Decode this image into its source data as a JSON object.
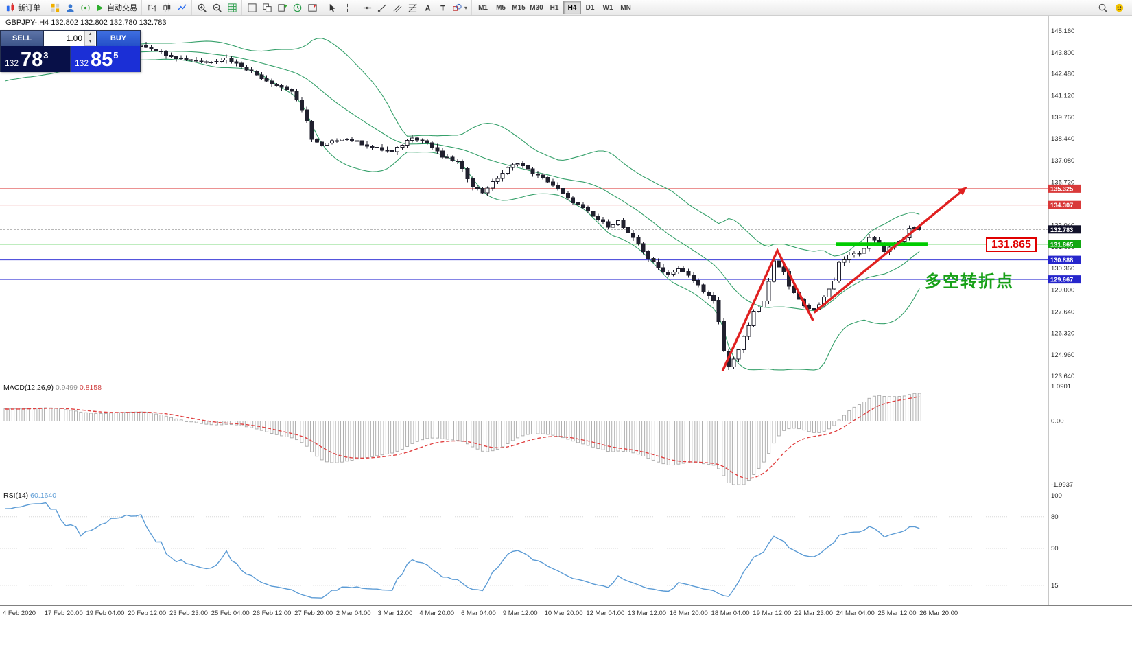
{
  "symbol_header": "GBPJPY-,H4 132.802 132.802 132.780 132.783",
  "annotation_text": "多空转折点",
  "price_tag": "131.865",
  "trade_widget": {
    "sell_label": "SELL",
    "buy_label": "BUY",
    "volume": "1.00",
    "sell_price": {
      "small": "132",
      "big": "78",
      "sup": "3"
    },
    "buy_price": {
      "small": "132",
      "big": "85",
      "sup": "5"
    }
  },
  "toolbar": {
    "groups": [
      {
        "items": [
          {
            "name": "new-order-button",
            "icon": "new-order",
            "label": "新订单"
          }
        ]
      },
      {
        "items": [
          {
            "name": "charts-grid-button",
            "icon": "charts-grid"
          },
          {
            "name": "market-watch-button",
            "icon": "profile"
          },
          {
            "name": "data-window-button",
            "icon": "signal"
          },
          {
            "name": "autotrading-button",
            "icon": "play",
            "label": "自动交易"
          }
        ]
      },
      {
        "items": [
          {
            "name": "bar-chart-button",
            "icon": "bar-chart"
          },
          {
            "name": "candlestick-button",
            "icon": "candlestick"
          },
          {
            "name": "line-chart-button",
            "icon": "line-chart"
          }
        ]
      },
      {
        "items": [
          {
            "name": "zoom-in-button",
            "icon": "zoom-in"
          },
          {
            "name": "zoom-out-button",
            "icon": "zoom-out"
          },
          {
            "name": "grid-button",
            "icon": "grid"
          }
        ]
      },
      {
        "items": [
          {
            "name": "tile-windows-button",
            "icon": "tile"
          },
          {
            "name": "cascade-windows-button",
            "icon": "cascade"
          },
          {
            "name": "new-chart-button",
            "icon": "new-chart"
          },
          {
            "name": "auto-scroll-button",
            "icon": "clock"
          },
          {
            "name": "chart-shift-button",
            "icon": "shift"
          }
        ]
      },
      {
        "items": [
          {
            "name": "cursor-button",
            "icon": "cursor"
          },
          {
            "name": "crosshair-button",
            "icon": "crosshair"
          }
        ]
      },
      {
        "items": [
          {
            "name": "horizontal-line-button",
            "icon": "hline"
          },
          {
            "name": "trendline-button",
            "icon": "trendline"
          },
          {
            "name": "channel-button",
            "icon": "channel"
          },
          {
            "name": "fibonacci-button",
            "icon": "fibo"
          },
          {
            "name": "text-button",
            "icon": "text-a"
          },
          {
            "name": "label-button",
            "icon": "text-t"
          },
          {
            "name": "shapes-button",
            "icon": "shapes",
            "caret": true
          }
        ]
      }
    ],
    "timeframes": [
      {
        "label": "M1"
      },
      {
        "label": "M5"
      },
      {
        "label": "M15"
      },
      {
        "label": "M30"
      },
      {
        "label": "H1"
      },
      {
        "label": "H4",
        "active": true
      },
      {
        "label": "D1"
      },
      {
        "label": "W1"
      },
      {
        "label": "MN"
      }
    ],
    "right_items": [
      {
        "name": "search-button",
        "icon": "search"
      },
      {
        "name": "community-button",
        "icon": "community"
      }
    ]
  },
  "price_axis": {
    "max": 145.16,
    "min": 123.64,
    "labels": [
      "145.160",
      "143.800",
      "142.480",
      "141.120",
      "139.760",
      "138.440",
      "137.080",
      "135.720",
      "134.360",
      "133.040",
      "131.680",
      "130.360",
      "129.000",
      "127.640",
      "126.320",
      "124.960",
      "123.640"
    ]
  },
  "hlines": [
    {
      "price": 135.325,
      "type": "red"
    },
    {
      "price": 134.307,
      "type": "red"
    },
    {
      "price": 132.783,
      "type": "current"
    },
    {
      "price": 131.865,
      "type": "green"
    },
    {
      "price": 130.888,
      "type": "blue"
    },
    {
      "price": 129.667,
      "type": "blue"
    }
  ],
  "support_segment": {
    "price": 131.865,
    "i1": 165.3,
    "i2": 183.6
  },
  "arrows": {
    "zigzag": [
      [
        142.8,
        123.98
      ],
      [
        153.7,
        131.47
      ],
      [
        160.8,
        127.1
      ]
    ],
    "trend": [
      [
        161.0,
        127.6
      ],
      [
        191.5,
        135.45
      ]
    ]
  },
  "panels": {
    "macd": {
      "name": "MACD(12,26,9)",
      "value1": "0.9499",
      "value2": "0.8158",
      "max": 1.0901,
      "min": -1.9937,
      "axis_labels": [
        {
          "text": "1.0901",
          "v": 1.0901
        },
        {
          "text": "0.00",
          "v": 0
        },
        {
          "text": "-1.9937",
          "v": -1.9937
        }
      ]
    },
    "rsi": {
      "name": "RSI(14)",
      "value": "60.1640",
      "levels": [
        80,
        50,
        15
      ],
      "axis_labels": [
        {
          "text": "100",
          "v": 100
        },
        {
          "text": "80",
          "v": 80
        },
        {
          "text": "50",
          "v": 50
        },
        {
          "text": "15",
          "v": 15
        }
      ]
    }
  },
  "time_axis": [
    "4 Feb 2020",
    "17 Feb 20:00",
    "19 Feb 04:00",
    "20 Feb 12:00",
    "23 Feb 23:00",
    "25 Feb 04:00",
    "26 Feb 12:00",
    "27 Feb 20:00",
    "2 Mar 04:00",
    "3 Mar 12:00",
    "4 Mar 20:00",
    "6 Mar 04:00",
    "9 Mar 12:00",
    "10 Mar 20:00",
    "12 Mar 04:00",
    "13 Mar 12:00",
    "16 Mar 20:00",
    "18 Mar 04:00",
    "19 Mar 12:00",
    "22 Mar 23:00",
    "24 Mar 04:00",
    "25 Mar 12:00",
    "26 Mar 20:00"
  ],
  "chart_data": {
    "type": "candlestick",
    "symbol": "GBPJPY-",
    "timeframe": "H4",
    "candle_count": 183,
    "last_close": 132.783,
    "warmup": {
      "count": 45,
      "start": 140.6,
      "end": 143.2
    },
    "anchors": [
      [
        0,
        143.2
      ],
      [
        8,
        143.8
      ],
      [
        15,
        143.5
      ],
      [
        21,
        144.0
      ],
      [
        27,
        144.3
      ],
      [
        34,
        143.5
      ],
      [
        40,
        143.2
      ],
      [
        44,
        143.45
      ],
      [
        48,
        142.8
      ],
      [
        53,
        141.9
      ],
      [
        57,
        141.4
      ],
      [
        60,
        139.6
      ],
      [
        61,
        138.4
      ],
      [
        63,
        138.0
      ],
      [
        67,
        138.5
      ],
      [
        70,
        138.25
      ],
      [
        73,
        137.9
      ],
      [
        77,
        137.6
      ],
      [
        81,
        138.55
      ],
      [
        84,
        138.2
      ],
      [
        87,
        137.3
      ],
      [
        90,
        137.0
      ],
      [
        93,
        135.5
      ],
      [
        95,
        135.1
      ],
      [
        98,
        136.0
      ],
      [
        100,
        136.6
      ],
      [
        102,
        136.95
      ],
      [
        105,
        136.3
      ],
      [
        108,
        135.8
      ],
      [
        110,
        135.3
      ],
      [
        112,
        134.7
      ],
      [
        115,
        134.1
      ],
      [
        117,
        133.6
      ],
      [
        120,
        133.0
      ],
      [
        122,
        133.3
      ],
      [
        124,
        132.5
      ],
      [
        126,
        131.9
      ],
      [
        128,
        131.0
      ],
      [
        130,
        130.4
      ],
      [
        132,
        130.0
      ],
      [
        134,
        130.35
      ],
      [
        136,
        129.9
      ],
      [
        138,
        129.3
      ],
      [
        141,
        128.3
      ],
      [
        142,
        127.0
      ],
      [
        143,
        125.2
      ],
      [
        144,
        124.2
      ],
      [
        146,
        125.3
      ],
      [
        148,
        126.8
      ],
      [
        149,
        127.6
      ],
      [
        151,
        128.3
      ],
      [
        152,
        129.5
      ],
      [
        153,
        130.9
      ],
      [
        155,
        130.1
      ],
      [
        156,
        129.2
      ],
      [
        158,
        128.5
      ],
      [
        159,
        128.0
      ],
      [
        161,
        127.8
      ],
      [
        163,
        128.5
      ],
      [
        165,
        129.6
      ],
      [
        166,
        130.7
      ],
      [
        168,
        131.2
      ],
      [
        170,
        131.35
      ],
      [
        171,
        131.6
      ],
      [
        172,
        132.3
      ],
      [
        174,
        131.8
      ],
      [
        175,
        131.45
      ],
      [
        177,
        131.8
      ],
      [
        179,
        132.3
      ],
      [
        180,
        132.9
      ],
      [
        182,
        132.783
      ]
    ],
    "indicators": [
      {
        "type": "bollinger",
        "period": 20,
        "dev": 2
      },
      {
        "type": "macd",
        "fast": 12,
        "slow": 26,
        "signal": 9
      },
      {
        "type": "rsi",
        "period": 14
      }
    ]
  },
  "colors": {
    "line_red": "#e05050",
    "badge_red": "#d93a3a",
    "line_green": "#00b400",
    "seg_green": "#00cc00",
    "badge_green": "#12a812",
    "line_blue": "#3c3cd8",
    "badge_blue": "#2626cc",
    "current_line": "#a0a0a0",
    "current_badge": "#13132b",
    "bollinger": "#35a06a",
    "candle_dark": "#20202e",
    "macd_bar": "#a8a8a8",
    "macd_signal": "#e04040",
    "rsi_line": "#5b9bd5",
    "arrow_red": "#e02020"
  }
}
